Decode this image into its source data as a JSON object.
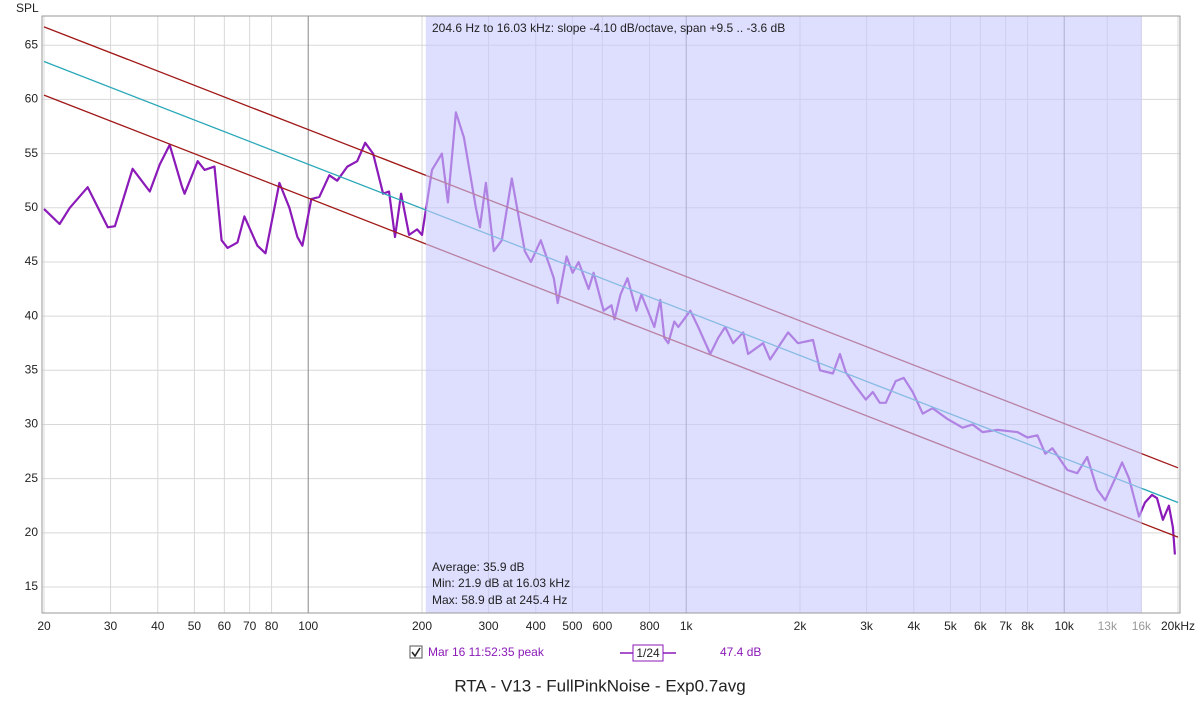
{
  "chart_data": {
    "type": "line",
    "title": "RTA - V13 - FullPinkNoise - Exp0.7avg",
    "ylabel": "SPL",
    "log_x": true,
    "grid": true,
    "xlim": [
      20,
      20000
    ],
    "ylim": [
      12.6,
      67.7
    ],
    "xticks": [
      20,
      30,
      40,
      50,
      60,
      70,
      80,
      100,
      200,
      300,
      400,
      500,
      600,
      800,
      {
        "value": 1000,
        "label": "1k"
      },
      {
        "value": 2000,
        "label": "2k"
      },
      {
        "value": 3000,
        "label": "3k"
      },
      {
        "value": 4000,
        "label": "4k"
      },
      {
        "value": 5000,
        "label": "5k"
      },
      {
        "value": 6000,
        "label": "6k"
      },
      {
        "value": 7000,
        "label": "7k"
      },
      {
        "value": 8000,
        "label": "8k"
      },
      {
        "value": 10000,
        "label": "10k"
      },
      {
        "value": 13000,
        "label": "13k",
        "color": "#999999"
      },
      {
        "value": 16000,
        "label": "16k",
        "color": "#999999"
      },
      {
        "value": 20000,
        "label": "20kHz"
      }
    ],
    "yticks": [
      15,
      20,
      25,
      30,
      35,
      40,
      45,
      50,
      55,
      60,
      65
    ],
    "shaded_range": [
      204.6,
      16030
    ],
    "shade_color": "#c8c8ff",
    "annotation": "204.6 Hz to 16.03 kHz: slope -4.10 dB/octave, span +9.5 .. -3.6 dB",
    "stats": [
      "Average: 35.9 dB",
      "Min: 21.9 dB at 16.03 kHz",
      "Max: 58.9 dB at 245.4 Hz"
    ],
    "lines": [
      {
        "color": "#2aa8b8",
        "x": [
          20,
          20000
        ],
        "values": [
          63.5,
          22.8
        ]
      },
      {
        "color": "#a01818",
        "x": [
          20,
          20000
        ],
        "values": [
          66.7,
          26
        ]
      },
      {
        "color": "#a01818",
        "x": [
          20,
          20000
        ],
        "values": [
          60.4,
          19.6
        ]
      }
    ],
    "color": "#8b1ab8",
    "x": [
      20,
      22.0,
      23.4,
      26.1,
      29.5,
      30.8,
      34.3,
      38.1,
      40.5,
      43.0,
      46.3,
      47.1,
      51.0,
      53.2,
      56.5,
      59.0,
      61.2,
      65.0,
      67.8,
      73.4,
      77.1,
      83.9,
      89.2,
      93.6,
      96.5,
      101.9,
      107,
      113.7,
      119.3,
      126.9,
      134.8,
      141.5,
      148.5,
      157.8,
      163.6,
      169.7,
      176.1,
      184.9,
      194.1,
      200,
      212.5,
      225.8,
      234.2,
      245.9,
      258.1,
      277.7,
      284.5,
      295.1,
      309.7,
      325.2,
      345.6,
      374.2,
      388.2,
      412.3,
      446.3,
      457.2,
      482.6,
      500.5,
      519.1,
      551.7,
      568.7,
      604.4,
      634.5,
      646.1,
      670.1,
      699.2,
      738.1,
      760.9,
      823.5,
      854.1,
      875.2,
      896.6,
      929.9,
      952.8,
      1025,
      1076,
      1158,
      1215,
      1268,
      1331,
      1415,
      1458,
      1597,
      1667,
      1860,
      1976,
      2165,
      2259,
      2444,
      2551,
      2645,
      2811,
      2986,
      3116,
      3251,
      3372,
      3583,
      3762,
      3974,
      4222,
      4486,
      4915,
      5386,
      5724,
      6081,
      6662,
      7522,
      7992,
      8491,
      8914,
      9303,
      10191,
      10829,
      11506,
      12224,
      12835,
      13637,
      14227,
      14846,
      15775,
      16359,
      17070,
      17597,
      18247,
      18922,
      19386,
      19624
    ],
    "values": [
      49.9,
      48.5,
      50,
      51.9,
      48.2,
      48.3,
      53.6,
      51.5,
      54,
      55.8,
      52,
      51.3,
      54.3,
      53.5,
      53.8,
      47,
      46.3,
      46.8,
      49.2,
      46.5,
      45.8,
      52.3,
      50,
      47.3,
      46.5,
      50.8,
      51,
      53,
      52.5,
      53.8,
      54.3,
      56,
      55,
      51.3,
      51.5,
      47.3,
      51.3,
      47.5,
      48,
      47.5,
      53.5,
      55,
      50.5,
      58.8,
      56.5,
      50,
      48.2,
      52.3,
      46,
      47,
      52.7,
      46,
      45,
      47,
      43.5,
      41.2,
      45.5,
      44,
      45,
      42.5,
      44,
      40.5,
      41,
      39.7,
      42,
      43.5,
      40.5,
      42,
      39,
      41.5,
      38,
      37.5,
      39.5,
      39,
      40.5,
      39,
      36.5,
      38,
      39,
      37.5,
      38.5,
      36.5,
      37.5,
      36,
      38.5,
      37.5,
      37.8,
      35,
      34.7,
      36.5,
      34.8,
      33.5,
      32.3,
      33,
      32,
      32,
      34,
      34.3,
      33,
      31,
      31.5,
      30.5,
      29.7,
      30,
      29.3,
      29.5,
      29.3,
      28.8,
      29,
      27.3,
      27.8,
      25.8,
      25.5,
      27,
      24,
      23,
      25,
      26.5,
      25,
      21.5,
      22.8,
      23.5,
      23.2,
      21.2,
      22.5,
      20.5,
      18
    ],
    "legend": {
      "label": "Mar 16 11:52:35 peak",
      "smoothing": "1/24",
      "level": "47.4 dB"
    }
  }
}
